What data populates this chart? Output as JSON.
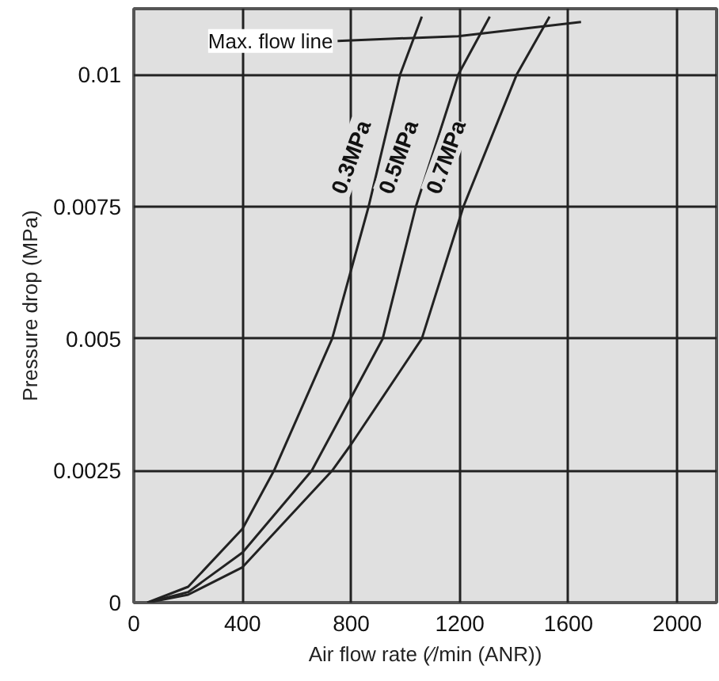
{
  "chart_data": {
    "type": "line",
    "xlabel": "Air flow rate (⁄/min (ANR))",
    "ylabel": "Pressure drop (MPa)",
    "xlim": [
      0,
      2145
    ],
    "ylim": [
      0,
      0.01125
    ],
    "xticks": [
      0,
      400,
      800,
      1200,
      1600,
      2000
    ],
    "yticks": [
      0,
      0.0025,
      0.005,
      0.0075,
      0.01
    ],
    "grid": true,
    "marker": "none",
    "line_style": "solid",
    "series": [
      {
        "name": "0.3MPa",
        "color": "#222222",
        "x": [
          50,
          200,
          400,
          516,
          730,
          864,
          980,
          1060
        ],
        "values": [
          0,
          0.0003,
          0.0014,
          0.0025,
          0.005,
          0.0075,
          0.01,
          0.0111
        ]
      },
      {
        "name": "0.5MPa",
        "color": "#222222",
        "x": [
          50,
          200,
          400,
          655,
          916,
          1038,
          1194,
          1310
        ],
        "values": [
          0,
          0.0002,
          0.00095,
          0.0025,
          0.005,
          0.0075,
          0.01,
          0.0111
        ]
      },
      {
        "name": "0.7MPa",
        "color": "#222222",
        "x": [
          50,
          200,
          400,
          730,
          800,
          1060,
          1213,
          1409,
          1530
        ],
        "values": [
          0,
          0.00015,
          0.00067,
          0.0025,
          0.003,
          0.005,
          0.0075,
          0.01,
          0.0111
        ]
      },
      {
        "name": "Max. flow line",
        "color": "#222222",
        "x": [
          750,
          1194,
          1646
        ],
        "values": [
          0.01064,
          0.01073,
          0.011
        ]
      }
    ]
  }
}
